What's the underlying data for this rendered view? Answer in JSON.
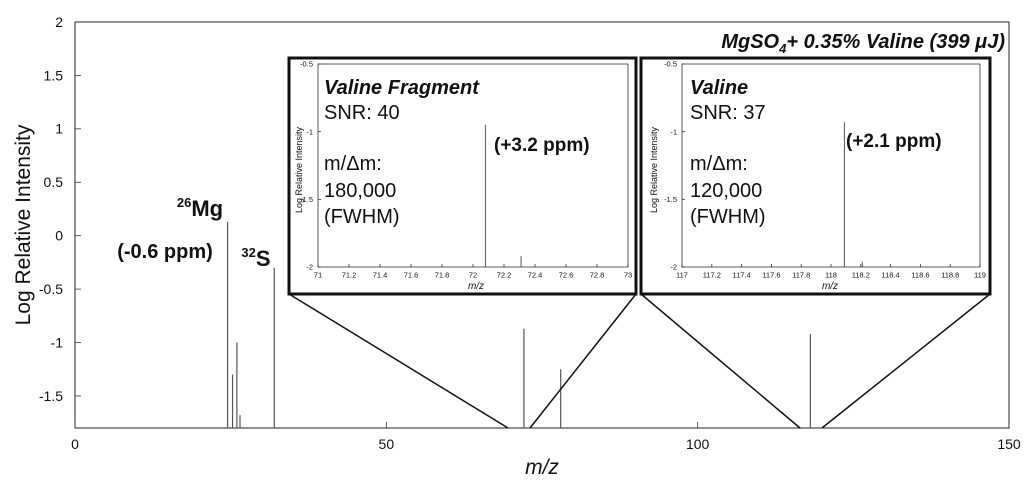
{
  "chart_data": [
    {
      "type": "bar",
      "title": "MgSO",
      "title_subscript": "4",
      "title_rest": "+ 0.35% Valine (399 μJ)",
      "xlabel": "m/z",
      "ylabel": "Log Relative Intensity",
      "xlim": [
        0,
        150
      ],
      "ylim": [
        -1.8,
        2
      ],
      "xticks": [
        "0",
        "50",
        "100",
        "150"
      ],
      "yticks": [
        "-1.5",
        "-1",
        "-0.5",
        "0",
        "0.5",
        "1",
        "1.5",
        "2"
      ],
      "grid": false,
      "peaks": [
        {
          "x": 24.5,
          "y": 0.13
        },
        {
          "x": 25.3,
          "y": -1.3
        },
        {
          "x": 26.0,
          "y": -1.0
        },
        {
          "x": 26.5,
          "y": -1.68
        },
        {
          "x": 32.0,
          "y": -0.3
        },
        {
          "x": 72.1,
          "y": -0.87
        },
        {
          "x": 78.0,
          "y": -1.25
        },
        {
          "x": 118.1,
          "y": -0.92
        }
      ],
      "annotations": [
        {
          "sup": "26",
          "text": "Mg"
        },
        {
          "text": "(-0.6 ppm)"
        },
        {
          "sup": "32",
          "text": "S"
        }
      ]
    },
    {
      "type": "bar",
      "title": "Valine Fragment",
      "xlabel": "m/z",
      "ylabel": "Log Relative Intensity",
      "xlim": [
        71,
        73
      ],
      "ylim": [
        -2,
        -0.5
      ],
      "xticks": [
        "71",
        "71.2",
        "71.4",
        "71.6",
        "71.8",
        "72",
        "72.2",
        "72.4",
        "72.6",
        "72.8",
        "73"
      ],
      "yticks": [
        "-0.5",
        "-1",
        "-1.5",
        "-2"
      ],
      "peaks": [
        {
          "x": 72.08,
          "y": -0.95
        },
        {
          "x": 72.31,
          "y": -1.92
        }
      ],
      "annotations": [
        "SNR: 40",
        "m/Δm:",
        "180,000",
        "(FWHM)",
        "(+3.2 ppm)"
      ]
    },
    {
      "type": "bar",
      "title": "Valine",
      "xlabel": "m/z",
      "ylabel": "Log Relative Intensity",
      "xlim": [
        117,
        119
      ],
      "ylim": [
        -2,
        -0.5
      ],
      "xticks": [
        "117",
        "117.2",
        "117.4",
        "117.6",
        "117.8",
        "118",
        "118.2",
        "118.4",
        "118.6",
        "118.8",
        "119"
      ],
      "yticks": [
        "-0.5",
        "-1",
        "-1.5",
        "-2"
      ],
      "peaks": [
        {
          "x": 118.09,
          "y": -0.93
        },
        {
          "x": 118.21,
          "y": -1.96
        }
      ],
      "annotations": [
        "SNR: 37",
        "m/Δm:",
        "120,000",
        "(FWHM)",
        "(+2.1 ppm)"
      ]
    }
  ]
}
